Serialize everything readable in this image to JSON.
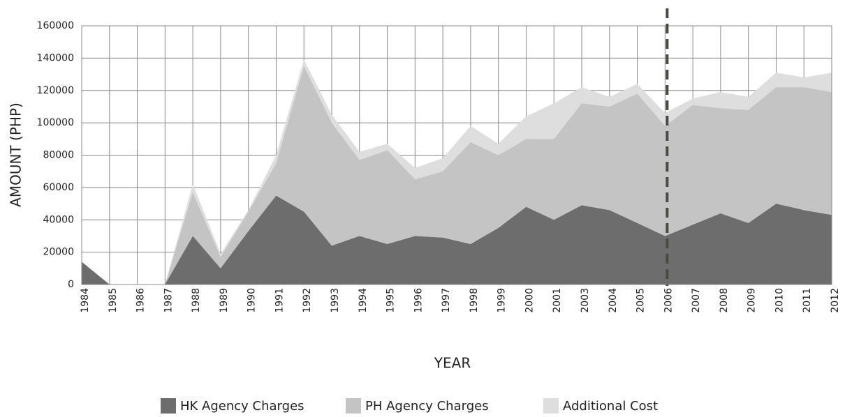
{
  "chart_data": {
    "type": "stacked_area",
    "categories": [
      "1984",
      "1985",
      "1986",
      "1987",
      "1988",
      "1989",
      "1990",
      "1991",
      "1992",
      "1993",
      "1994",
      "1995",
      "1996",
      "1997",
      "1998",
      "1999",
      "2000",
      "2001",
      "2003",
      "2004",
      "2005",
      "2006",
      "2007",
      "2008",
      "2009",
      "2010",
      "2011",
      "2012"
    ],
    "series": [
      {
        "name": "HK Agency Charges",
        "color": "#6d6d6d",
        "values": [
          14000,
          0,
          0,
          0,
          30000,
          10000,
          33000,
          55000,
          45000,
          24000,
          30000,
          25000,
          30000,
          29000,
          25000,
          35000,
          48000,
          40000,
          49000,
          46000,
          38000,
          30000,
          37000,
          44000,
          38000,
          50000,
          46000,
          43000
        ]
      },
      {
        "name": "PH Agency Charges",
        "color": "#c4c4c4",
        "values": [
          0,
          0,
          0,
          0,
          27000,
          7000,
          12000,
          20000,
          90000,
          76000,
          47000,
          58000,
          35000,
          41000,
          63000,
          45000,
          42000,
          50000,
          63000,
          64000,
          80000,
          68000,
          74000,
          65000,
          70000,
          72000,
          76000,
          76000
        ]
      },
      {
        "name": "Additional Cost",
        "color": "#dedede",
        "values": [
          0,
          0,
          0,
          0,
          5000,
          2000,
          1000,
          5000,
          4000,
          5000,
          5000,
          4000,
          7000,
          8000,
          10000,
          7000,
          14000,
          22000,
          10000,
          6000,
          6000,
          8000,
          4000,
          10000,
          8000,
          9000,
          6000,
          12000
        ]
      }
    ],
    "xlabel": "YEAR",
    "ylabel": "AMOUNT (PHP)",
    "ylim": [
      0,
      160000
    ],
    "yticks": [
      0,
      20000,
      40000,
      60000,
      80000,
      100000,
      120000,
      140000,
      160000
    ],
    "grid": true,
    "legend": "bottom",
    "vline": "2006"
  }
}
